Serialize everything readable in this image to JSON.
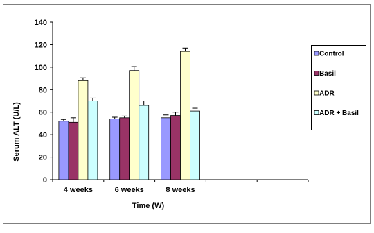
{
  "chart_data": {
    "type": "bar",
    "title": "",
    "xlabel": "Time (W)",
    "ylabel": "Serum ALT (U/L)",
    "ylim": [
      0,
      140
    ],
    "yticks": [
      0,
      20,
      40,
      60,
      80,
      100,
      120,
      140
    ],
    "categories": [
      "4 weeks",
      "6 weeks",
      "8 weeks"
    ],
    "empty_slots": 2,
    "grid": false,
    "legend_position": "right",
    "series": [
      {
        "name": "Control",
        "color": "#9999ff",
        "values": [
          52,
          54,
          55
        ],
        "errors": [
          1.5,
          1.5,
          2.5
        ]
      },
      {
        "name": "Basil",
        "color": "#993366",
        "values": [
          51,
          55,
          57
        ],
        "errors": [
          4,
          1.5,
          3
        ]
      },
      {
        "name": "ADR",
        "color": "#ffffcc",
        "values": [
          88,
          97,
          114
        ],
        "errors": [
          2.5,
          3.5,
          3
        ]
      },
      {
        "name": "ADR + Basil",
        "color": "#ccffff",
        "values": [
          70,
          66,
          61
        ],
        "errors": [
          2.5,
          4,
          2.5
        ]
      }
    ]
  }
}
